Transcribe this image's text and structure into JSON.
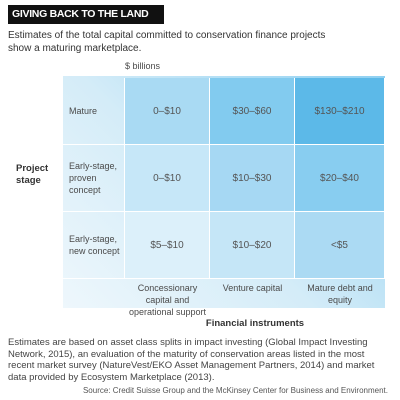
{
  "header": {
    "title": "GIVING BACK TO THE LAND",
    "subtitle": "Estimates of the total capital committed to conservation finance projects show a maturing marketplace."
  },
  "grid": {
    "unit": "$ billions",
    "row_axis_label": "Project stage",
    "column_axis_label": "Financial instruments",
    "columns": [
      "Concessionary capital and operational support",
      "Venture capital",
      "Mature debt and equity"
    ],
    "rows": [
      {
        "label": "Mature",
        "cells": [
          "0–$10",
          "$30–$60",
          "$130–$210"
        ]
      },
      {
        "label": "Early-stage, proven concept",
        "cells": [
          "0–$10",
          "$10–$30",
          "$20–$40"
        ]
      },
      {
        "label": "Early-stage, new concept",
        "cells": [
          "$5–$10",
          "$10–$20",
          "<$5"
        ]
      }
    ]
  },
  "footer": {
    "note": "Estimates are based on asset class splits in impact investing (Global Impact Investing Network, 2015), an evaluation of the maturity of conservation areas listed in the most recent market survey (NatureVest/EKO Asset Management Partners, 2014) and market data provided by Ecosystem Marketplace (2013).",
    "source": "Source: Credit Suisse Group and the McKinsey Center for Business and Environment."
  }
}
